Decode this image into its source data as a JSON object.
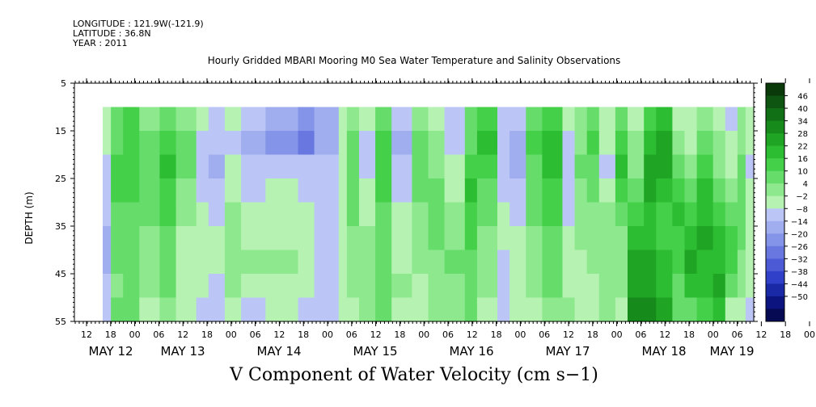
{
  "header": {
    "longitude": "LONGITUDE : 121.9W(-121.9)",
    "latitude": "LATITUDE : 36.8N",
    "year": "YEAR : 2011"
  },
  "chart_data": {
    "type": "heatmap",
    "title": "Hourly Gridded MBARI Mooring M0 Sea Water Temperature and Salinity Observations",
    "xlabel": "V Component of Water Velocity (cm s−1)",
    "ylabel": "DEPTH (m)",
    "y_ticks": [
      5,
      15,
      25,
      35,
      45,
      55
    ],
    "ylim": [
      55,
      5
    ],
    "data_depth_range": [
      10,
      55
    ],
    "x_hour_ticks": [
      "12",
      "18",
      "00",
      "06",
      "12",
      "18",
      "00",
      "06",
      "12",
      "18",
      "00",
      "06",
      "12",
      "18",
      "00",
      "06",
      "12",
      "18",
      "00",
      "06",
      "12",
      "18",
      "00",
      "06",
      "12",
      "18",
      "00",
      "06",
      "12",
      "18",
      "00",
      "06",
      "12",
      "18",
      "00",
      "06"
    ],
    "x_day_ticks": [
      "MAY 12",
      "MAY 13",
      "MAY 14",
      "MAY 15",
      "MAY 16",
      "MAY 17",
      "MAY 18",
      "MAY 19"
    ],
    "colorbar": {
      "levels": [
        "46",
        "40",
        "34",
        "28",
        "22",
        "16",
        "10",
        "4",
        "-2",
        "-8",
        "-14",
        "-20",
        "-26",
        "-32",
        "-38",
        "-44",
        "-50"
      ],
      "colors": [
        "#0a3a0a",
        "#0d5510",
        "#117015",
        "#178a1c",
        "#1fa424",
        "#2cbd33",
        "#45d04a",
        "#66dd6a",
        "#8ee88e",
        "#b6f2b2",
        "#bcc6f6",
        "#a0aef0",
        "#8494e8",
        "#6878e0",
        "#4c5ad6",
        "#3040c8",
        "#1a2aa6",
        "#0c1480",
        "#060a52"
      ]
    },
    "columns": [
      {
        "x": 12,
        "v": [
          -4,
          -6,
          -10,
          -8,
          -12,
          -14,
          -14,
          -12,
          -10
        ]
      },
      {
        "x": 14,
        "v": [
          6,
          10,
          14,
          12,
          10,
          8,
          6,
          4,
          6
        ]
      },
      {
        "x": 17,
        "v": [
          12,
          16,
          16,
          14,
          10,
          8,
          6,
          8,
          10
        ]
      },
      {
        "x": 21,
        "v": [
          4,
          8,
          10,
          8,
          6,
          4,
          2,
          0,
          -2
        ]
      },
      {
        "x": 26,
        "v": [
          10,
          16,
          18,
          14,
          12,
          10,
          8,
          6,
          4
        ]
      },
      {
        "x": 30,
        "v": [
          4,
          8,
          6,
          2,
          0,
          -2,
          -4,
          -6,
          -4
        ]
      },
      {
        "x": 35,
        "v": [
          -6,
          -10,
          -12,
          -8,
          -6,
          -4,
          -2,
          -4,
          -8
        ]
      },
      {
        "x": 38,
        "v": [
          -8,
          -12,
          -14,
          -10,
          -8,
          -6,
          -6,
          -10,
          -12
        ]
      },
      {
        "x": 42,
        "v": [
          -4,
          -8,
          -6,
          -2,
          2,
          4,
          2,
          0,
          -4
        ]
      },
      {
        "x": 46,
        "v": [
          -10,
          -14,
          -12,
          -8,
          -4,
          -2,
          0,
          -4,
          -8
        ]
      },
      {
        "x": 52,
        "v": [
          -16,
          -22,
          -10,
          -6,
          -4,
          -2,
          2,
          -4,
          -6
        ]
      },
      {
        "x": 60,
        "v": [
          -24,
          -28,
          -10,
          -8,
          -6,
          -6,
          -4,
          -6,
          -8
        ]
      },
      {
        "x": 64,
        "v": [
          -18,
          -16,
          -8,
          -8,
          -8,
          -8,
          -8,
          -8,
          -8
        ]
      },
      {
        "x": 70,
        "v": [
          -4,
          -6,
          -6,
          -6,
          -6,
          -6,
          -6,
          -6,
          -6
        ]
      },
      {
        "x": 72,
        "v": [
          2,
          6,
          10,
          8,
          6,
          4,
          2,
          0,
          -2
        ]
      },
      {
        "x": 75,
        "v": [
          -6,
          -8,
          -10,
          -6,
          -2,
          0,
          2,
          4,
          4
        ]
      },
      {
        "x": 79,
        "v": [
          8,
          12,
          16,
          14,
          10,
          8,
          6,
          10,
          8
        ]
      },
      {
        "x": 83,
        "v": [
          -10,
          -14,
          -10,
          -8,
          -6,
          -4,
          -2,
          0,
          -2
        ]
      },
      {
        "x": 88,
        "v": [
          4,
          8,
          10,
          6,
          4,
          2,
          0,
          -2,
          -4
        ]
      },
      {
        "x": 92,
        "v": [
          -2,
          0,
          4,
          6,
          8,
          6,
          4,
          2,
          0
        ]
      },
      {
        "x": 96,
        "v": [
          -8,
          -10,
          -6,
          -2,
          2,
          4,
          6,
          4,
          2
        ]
      },
      {
        "x": 101,
        "v": [
          6,
          10,
          14,
          18,
          16,
          12,
          10,
          8,
          6
        ]
      },
      {
        "x": 104,
        "v": [
          14,
          18,
          16,
          10,
          6,
          4,
          2,
          0,
          -2
        ]
      },
      {
        "x": 109,
        "v": [
          -8,
          -12,
          -10,
          -8,
          -6,
          -4,
          -8,
          -10,
          -12
        ]
      },
      {
        "x": 112,
        "v": [
          -10,
          -14,
          -16,
          -12,
          -8,
          -4,
          -2,
          -4,
          -6
        ]
      },
      {
        "x": 116,
        "v": [
          8,
          12,
          10,
          8,
          6,
          4,
          2,
          0,
          -2
        ]
      },
      {
        "x": 120,
        "v": [
          14,
          18,
          20,
          16,
          12,
          10,
          8,
          6,
          4
        ]
      },
      {
        "x": 125,
        "v": [
          -6,
          -8,
          -10,
          -12,
          -8,
          -6,
          -4,
          -2,
          0
        ]
      },
      {
        "x": 128,
        "v": [
          2,
          4,
          6,
          4,
          2,
          0,
          -2,
          -4,
          -6
        ]
      },
      {
        "x": 131,
        "v": [
          8,
          12,
          10,
          6,
          4,
          2,
          0,
          -2,
          -4
        ]
      },
      {
        "x": 134,
        "v": [
          -4,
          -6,
          -8,
          -4,
          0,
          2,
          4,
          2,
          0
        ]
      },
      {
        "x": 138,
        "v": [
          10,
          16,
          18,
          14,
          8,
          4,
          2,
          0,
          -2
        ]
      },
      {
        "x": 141,
        "v": [
          -2,
          0,
          4,
          10,
          16,
          20,
          24,
          28,
          30
        ]
      },
      {
        "x": 145,
        "v": [
          14,
          22,
          26,
          24,
          22,
          22,
          24,
          28,
          30
        ]
      },
      {
        "x": 148,
        "v": [
          20,
          26,
          24,
          20,
          16,
          14,
          18,
          22,
          24
        ]
      },
      {
        "x": 152,
        "v": [
          -2,
          4,
          10,
          14,
          18,
          16,
          12,
          8,
          6
        ]
      },
      {
        "x": 155,
        "v": [
          -6,
          -4,
          0,
          8,
          16,
          22,
          24,
          20,
          10
        ]
      },
      {
        "x": 158,
        "v": [
          2,
          8,
          14,
          20,
          22,
          24,
          22,
          18,
          12
        ]
      },
      {
        "x": 162,
        "v": [
          -4,
          0,
          4,
          10,
          16,
          20,
          22,
          24,
          20
        ]
      },
      {
        "x": 165,
        "v": [
          -8,
          -6,
          -2,
          4,
          10,
          14,
          16,
          10,
          -2
        ]
      },
      {
        "x": 168,
        "v": [
          2,
          4,
          8,
          10,
          8,
          6,
          4,
          2,
          -4
        ]
      },
      {
        "x": 170,
        "v": [
          -4,
          -6,
          -8,
          -6,
          -4,
          -2,
          -4,
          -6,
          -8
        ]
      }
    ]
  }
}
